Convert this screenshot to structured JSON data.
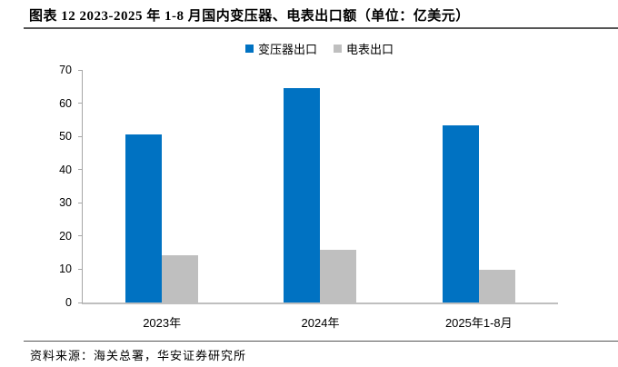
{
  "title": "图表 12 2023-2025 年 1-8 月国内变压器、电表出口额（单位：亿美元）",
  "source": "资料来源：海关总署，华安证券研究所",
  "legend": [
    {
      "label": "变压器出口",
      "color": "#0072C2"
    },
    {
      "label": "电表出口",
      "color": "#BFBFBF"
    }
  ],
  "colors": {
    "transformer_bar": "#0072C2",
    "meter_bar": "#BFBFBF",
    "axis_line": "#A6A6A6",
    "rule_line": "#555555"
  },
  "chart_data": {
    "type": "bar",
    "title": "2023-2025 年 1-8 月国内变压器、电表出口额",
    "unit": "亿美元",
    "categories": [
      "2023年",
      "2024年",
      "2025年1-8月"
    ],
    "series": [
      {
        "name": "变压器出口",
        "color": "#0072C2",
        "values": [
          50.7,
          64.5,
          53.3
        ]
      },
      {
        "name": "电表出口",
        "color": "#BFBFBF",
        "values": [
          14.2,
          15.9,
          9.8
        ]
      }
    ],
    "ylim": [
      0,
      70
    ],
    "ytick_step": 10,
    "yticks": [
      0,
      10,
      20,
      30,
      40,
      50,
      60,
      70
    ],
    "grid": false,
    "legend_position": "top"
  }
}
